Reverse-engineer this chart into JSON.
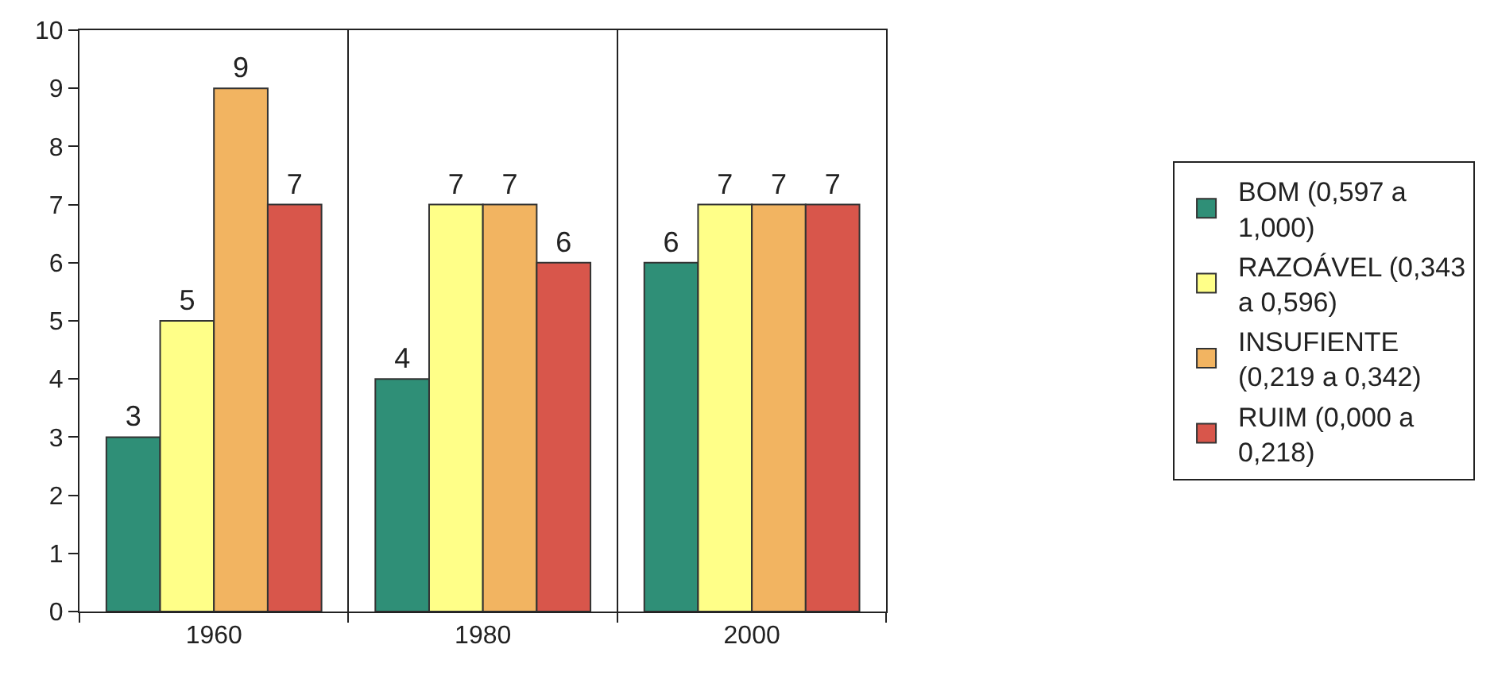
{
  "chart_data": {
    "type": "bar",
    "categories": [
      "1960",
      "1980",
      "2000"
    ],
    "series": [
      {
        "name": "BOM (0,597 a 1,000)",
        "color": "#2f8f77",
        "values": [
          3,
          4,
          6
        ]
      },
      {
        "name": "RAZOÁVEL (0,343 a 0,596)",
        "color": "#ffff88",
        "values": [
          5,
          7,
          7
        ]
      },
      {
        "name": "INSUFIENTE (0,219 a 0,342)",
        "color": "#f2b461",
        "values": [
          9,
          7,
          7
        ]
      },
      {
        "name": "RUIM (0,000 a 0,218)",
        "color": "#d8564b",
        "values": [
          7,
          6,
          7
        ]
      }
    ],
    "ylim": [
      0,
      10
    ],
    "yticks": [
      0,
      1,
      2,
      3,
      4,
      5,
      6,
      7,
      8,
      9,
      10
    ],
    "grid": "x",
    "legend": "right",
    "data_labels": true
  }
}
